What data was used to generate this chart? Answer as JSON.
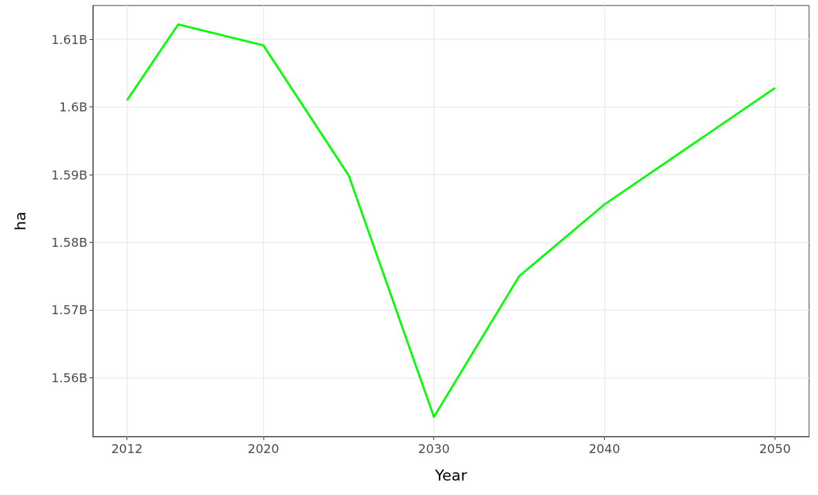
{
  "chart_data": {
    "type": "line",
    "xlabel": "Year",
    "ylabel": "ha",
    "x": [
      2012,
      2015,
      2020,
      2025,
      2030,
      2035,
      2040,
      2050
    ],
    "series": [
      {
        "color": "#00ff00",
        "values": [
          1601000000,
          1612200000,
          1609100000,
          1589900000,
          1554200000,
          1575000000,
          1585600000,
          1602800000
        ]
      }
    ],
    "xlim": [
      2010,
      2052
    ],
    "xticks": [
      2012,
      2020,
      2030,
      2040,
      2050
    ],
    "ylim": [
      1551300000,
      1615000000
    ],
    "yticks": [
      {
        "value": 1560000000,
        "label": "1.56B"
      },
      {
        "value": 1570000000,
        "label": "1.57B"
      },
      {
        "value": 1580000000,
        "label": "1.58B"
      },
      {
        "value": 1590000000,
        "label": "1.59B"
      },
      {
        "value": 1600000000,
        "label": "1.6B"
      },
      {
        "value": 1610000000,
        "label": "1.61B"
      }
    ],
    "grid": true,
    "marker": "none",
    "line_style": "solid"
  }
}
